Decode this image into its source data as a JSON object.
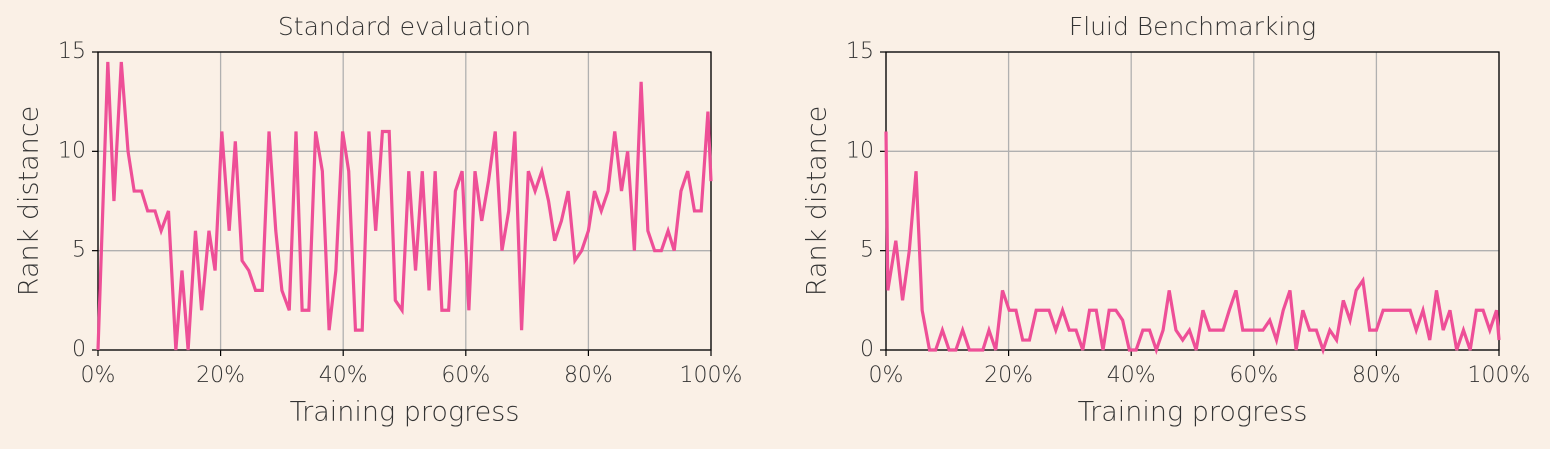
{
  "chart_data": [
    {
      "type": "line",
      "title": "Standard evaluation",
      "xlabel": "Training progress",
      "ylabel": "Rank distance",
      "xlim": [
        0,
        100
      ],
      "ylim": [
        0,
        15
      ],
      "xticks": [
        {
          "value": 0,
          "label": "0%"
        },
        {
          "value": 20,
          "label": "20%"
        },
        {
          "value": 40,
          "label": "40%"
        },
        {
          "value": 60,
          "label": "60%"
        },
        {
          "value": 80,
          "label": "80%"
        },
        {
          "value": 100,
          "label": "100%"
        }
      ],
      "yticks": [
        0,
        5,
        10,
        15
      ],
      "grid": true,
      "x": [
        0,
        1.6,
        2.6,
        3.8,
        4.9,
        5.9,
        7.1,
        8.1,
        9.3,
        10.3,
        11.5,
        12.7,
        13.7,
        14.7,
        15.9,
        16.9,
        18.1,
        19.1,
        20.2,
        21.4,
        22.4,
        23.5,
        24.6,
        25.7,
        26.8,
        27.9,
        29,
        30,
        31.2,
        32.3,
        33.3,
        34.4,
        35.5,
        36.6,
        37.7,
        38.8,
        39.9,
        40.9,
        42,
        43.1,
        44.2,
        45.3,
        46.4,
        47.5,
        48.5,
        49.6,
        50.7,
        51.8,
        52.9,
        54,
        55,
        56.1,
        57.2,
        58.3,
        59.4,
        60.5,
        61.5,
        62.6,
        63.7,
        64.8,
        65.9,
        67,
        68,
        69.1,
        70.2,
        71.3,
        72.4,
        73.5,
        74.5,
        75.6,
        76.7,
        77.8,
        78.9,
        80,
        81,
        82.1,
        83.2,
        84.3,
        85.4,
        86.4,
        87.5,
        88.6,
        89.7,
        90.8,
        91.9,
        93,
        94,
        95.1,
        96.2,
        97.3,
        98.4,
        99.5,
        100
      ],
      "series": [
        {
          "color": "#ee4f97",
          "values": [
            0,
            14.5,
            7.5,
            14.5,
            10,
            8,
            8,
            7,
            7,
            6,
            7,
            0,
            4,
            0,
            6,
            2,
            6,
            4,
            11,
            6,
            10.5,
            4.5,
            4,
            3,
            3,
            11,
            6,
            3,
            2,
            11,
            2,
            2,
            11,
            9,
            1,
            4,
            11,
            9,
            1,
            1,
            11,
            6,
            11,
            11,
            2.5,
            2,
            9,
            4,
            9,
            3,
            9,
            2,
            2,
            8,
            9,
            2,
            9,
            6.5,
            8.5,
            11,
            5,
            7,
            11,
            1,
            9,
            8,
            9,
            7.5,
            5.5,
            6.5,
            8,
            4.5,
            5,
            6,
            8,
            7,
            8,
            11,
            8,
            10,
            5,
            13.5,
            6,
            5,
            5,
            6,
            5,
            8,
            9,
            7,
            7,
            12,
            8.5
          ]
        }
      ]
    },
    {
      "type": "line",
      "title": "Fluid Benchmarking",
      "xlabel": "Training progress",
      "ylabel": "Rank distance",
      "xlim": [
        0,
        100
      ],
      "ylim": [
        0,
        15
      ],
      "xticks": [
        {
          "value": 0,
          "label": "0%"
        },
        {
          "value": 20,
          "label": "20%"
        },
        {
          "value": 40,
          "label": "40%"
        },
        {
          "value": 60,
          "label": "60%"
        },
        {
          "value": 80,
          "label": "80%"
        },
        {
          "value": 100,
          "label": "100%"
        }
      ],
      "yticks": [
        0,
        5,
        10,
        15
      ],
      "grid": true,
      "x": [
        0,
        0.3,
        1.6,
        2.7,
        3.8,
        4.9,
        5.9,
        7.1,
        8.1,
        9.2,
        10.3,
        11.4,
        12.5,
        13.6,
        14.7,
        15.8,
        16.8,
        17.9,
        19,
        20.1,
        21.2,
        22.3,
        23.4,
        24.5,
        25.6,
        26.6,
        27.7,
        28.8,
        29.9,
        31,
        32.1,
        33.2,
        34.3,
        35.4,
        36.4,
        37.5,
        38.6,
        39.7,
        40.8,
        41.9,
        43,
        44.1,
        45.2,
        46.2,
        47.3,
        48.4,
        49.5,
        50.6,
        51.7,
        52.8,
        53.9,
        55,
        56,
        57.1,
        58.2,
        59.3,
        60.4,
        61.5,
        62.6,
        63.7,
        64.8,
        65.9,
        66.9,
        68,
        69.1,
        70.2,
        71.3,
        72.4,
        73.5,
        74.6,
        75.7,
        76.7,
        77.8,
        78.9,
        80,
        81.1,
        82.2,
        83.3,
        84.4,
        85.5,
        86.5,
        87.6,
        88.7,
        89.8,
        90.9,
        92,
        93.1,
        94.2,
        95.3,
        96.3,
        97.4,
        98.5,
        99.6,
        100
      ],
      "series": [
        {
          "color": "#ee4f97",
          "values": [
            11,
            3,
            5.5,
            2.5,
            5,
            9,
            2,
            0,
            0,
            1,
            0,
            0,
            1,
            0,
            0,
            0,
            1,
            0,
            3,
            2,
            2,
            0.5,
            0.5,
            2,
            2,
            2,
            1,
            2,
            1,
            1,
            0,
            2,
            2,
            0,
            2,
            2,
            1.5,
            0,
            0,
            1,
            1,
            0,
            1,
            3,
            1,
            0.5,
            1,
            0,
            2,
            1,
            1,
            1,
            2,
            3,
            1,
            1,
            1,
            1,
            1.5,
            0.5,
            2,
            3,
            0,
            2,
            1,
            1,
            0,
            1,
            0.5,
            2.5,
            1.5,
            3,
            3.5,
            1,
            1,
            2,
            2,
            2,
            2,
            2,
            1,
            2,
            0.5,
            3,
            1,
            2,
            0,
            1,
            0,
            2,
            2,
            1,
            2,
            0.5
          ]
        }
      ]
    }
  ]
}
